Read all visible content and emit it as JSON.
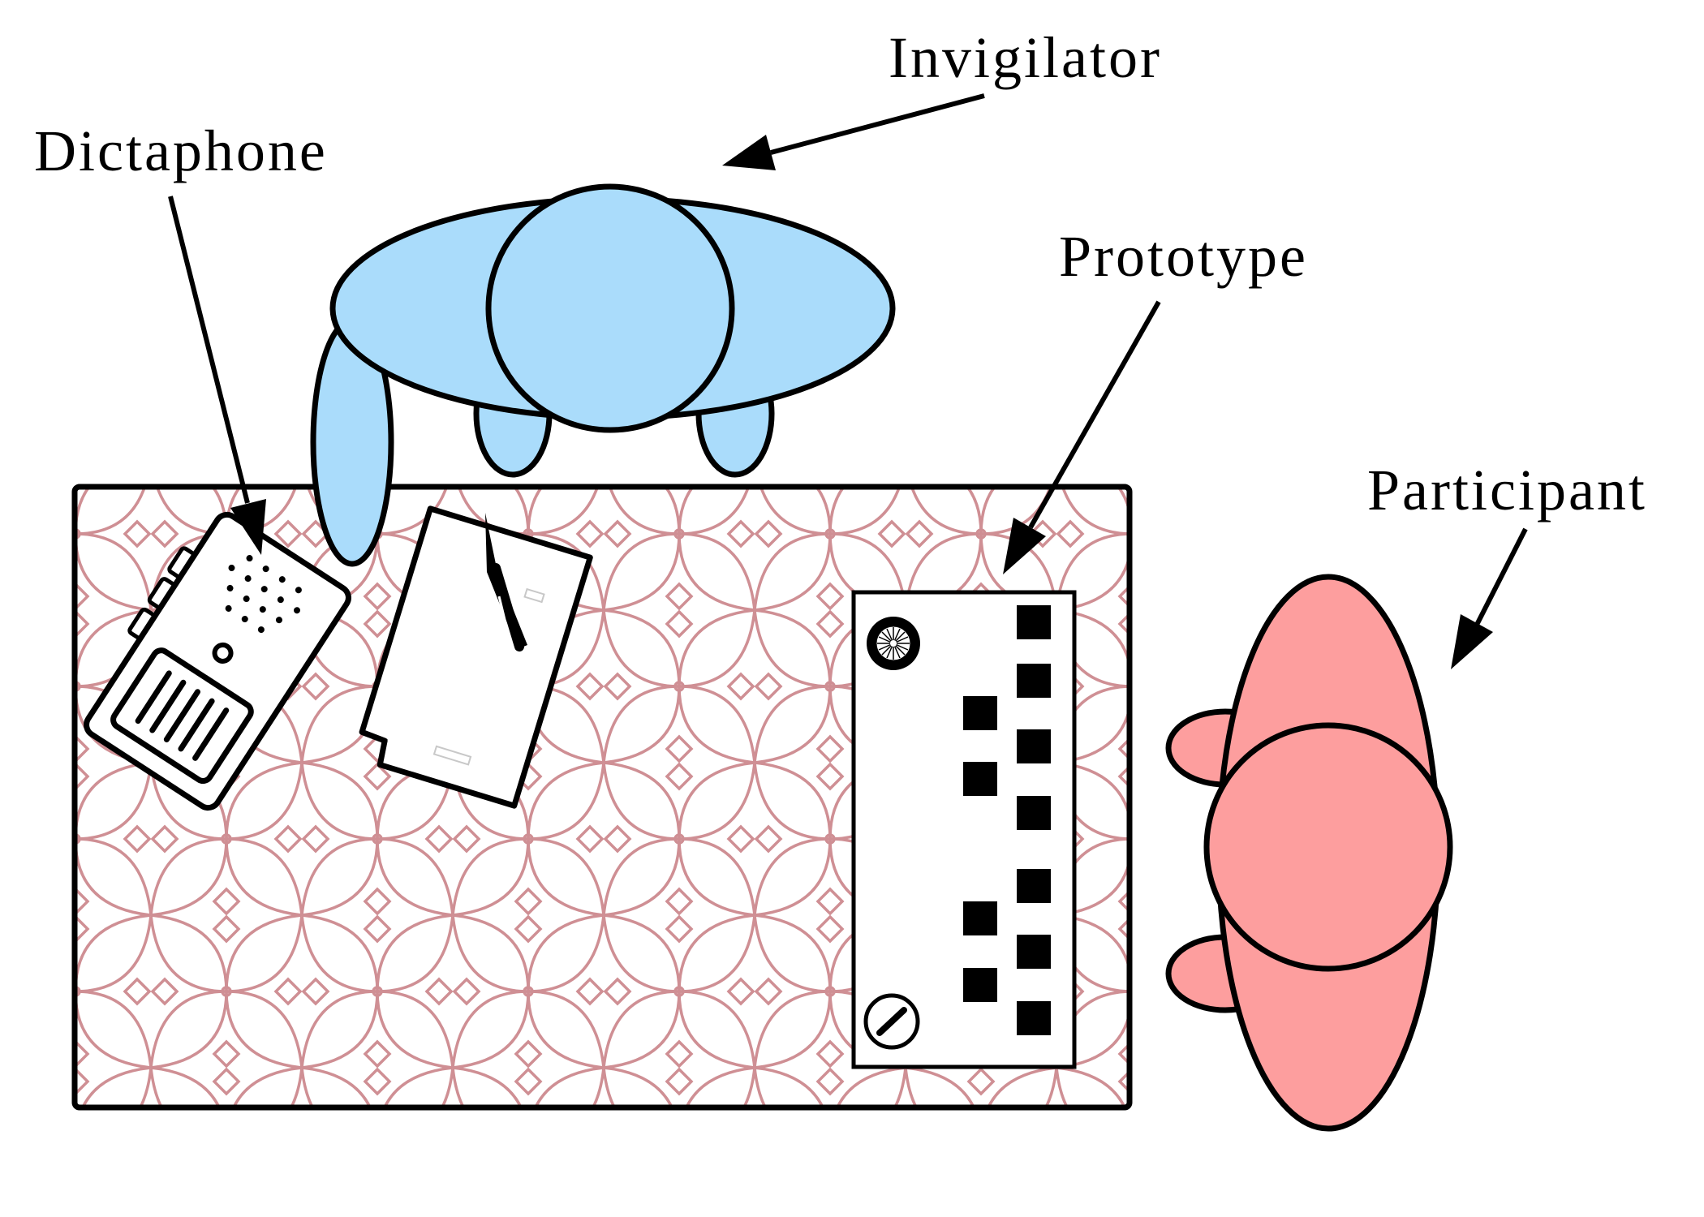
{
  "labels": {
    "invigilator": "Invigilator",
    "dictaphone": "Dictaphone",
    "prototype": "Prototype",
    "participant": "Participant"
  },
  "colors": {
    "invigilator_fill": "#aadcfb",
    "participant_fill": "#fd9e9e",
    "table_pattern": "#cf8f94",
    "outline": "#000000",
    "background": "#ffffff"
  },
  "icons": [
    "dictaphone-icon",
    "notepad-icon",
    "pen-icon",
    "knob-icon",
    "screw-icon"
  ]
}
